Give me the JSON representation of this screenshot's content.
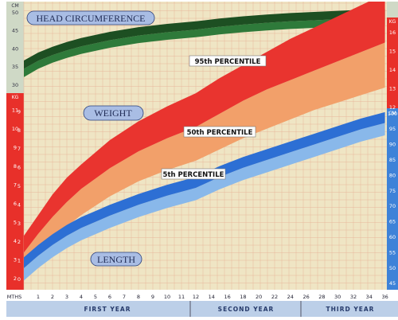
{
  "chart_data": {
    "type": "area",
    "x_axis": {
      "label": "MTHS",
      "ticks": [
        "1",
        "2",
        "3",
        "4",
        "5",
        "6",
        "7",
        "8",
        "9",
        "10",
        "11",
        "12",
        "14",
        "16",
        "18",
        "20",
        "22",
        "24",
        "26",
        "28",
        "30",
        "32",
        "34",
        "36"
      ],
      "periods": [
        "FIRST YEAR",
        "SECOND YEAR",
        "THIRD YEAR"
      ]
    },
    "head_axis": {
      "unit": "CM",
      "ticks": [
        "50",
        "45",
        "40",
        "35",
        "30"
      ],
      "range": [
        28,
        52
      ]
    },
    "weight_axis": {
      "unit": "KG",
      "ticks": [
        "11",
        "10",
        "9",
        "8",
        "7",
        "6",
        "5",
        "4",
        "3",
        "2"
      ],
      "range": [
        1.5,
        12.1
      ]
    },
    "weight_axis_right": {
      "unit": "KG",
      "ticks": [
        "16",
        "15",
        "14",
        "13",
        "12"
      ],
      "range": [
        11.5,
        17.5
      ]
    },
    "length_axis_left": {
      "ticks": [
        "9",
        "8",
        "7",
        "6",
        "5",
        "4",
        "3",
        "2",
        "1",
        "0"
      ]
    },
    "length_axis_right": {
      "unit": "CM",
      "ticks": [
        "100",
        "95",
        "90",
        "85",
        "80",
        "75",
        "70",
        "65",
        "60",
        "55",
        "50",
        "45"
      ],
      "range": [
        43,
        102
      ]
    },
    "labels": {
      "head": "HEAD CIRCUMFERENCE",
      "weight": "WEIGHT",
      "length": "LENGTH",
      "p95": "95th PERCENTILE",
      "p50": "50th PERCENTILE",
      "p5": "5th PERCENTILE"
    },
    "series": [
      {
        "name": "HEAD CIRCUMFERENCE",
        "months": [
          0,
          1,
          2,
          3,
          4,
          6,
          8,
          10,
          12,
          15,
          18,
          21,
          24,
          27,
          30,
          33,
          36
        ],
        "p5": [
          32.2,
          34.5,
          36.2,
          37.5,
          38.6,
          40.3,
          41.6,
          42.5,
          43.2,
          44,
          44.6,
          45.1,
          45.5,
          45.8,
          46.1,
          46.4,
          46.6
        ],
        "p50": [
          34.5,
          36.7,
          38.3,
          39.6,
          40.7,
          42.4,
          43.7,
          44.6,
          45.3,
          46.1,
          46.7,
          47.2,
          47.6,
          47.9,
          48.2,
          48.5,
          48.8
        ],
        "p95": [
          36.8,
          39,
          40.6,
          41.9,
          43,
          44.7,
          46,
          46.9,
          47.6,
          48.4,
          49,
          49.5,
          49.9,
          50.2,
          50.5,
          50.8,
          51
        ]
      },
      {
        "name": "WEIGHT",
        "months": [
          0,
          1,
          2,
          3,
          4,
          6,
          8,
          10,
          12,
          15,
          18,
          21,
          24,
          27,
          30,
          33,
          36
        ],
        "p5": [
          2.5,
          3.3,
          4.1,
          4.8,
          5.4,
          6.4,
          7.2,
          7.8,
          8.3,
          8.9,
          9.5,
          10,
          10.5,
          11,
          11.4,
          11.8,
          12.2
        ],
        "p50": [
          3.4,
          4.4,
          5.3,
          6.1,
          6.8,
          7.9,
          8.8,
          9.5,
          10.1,
          10.8,
          11.5,
          12.1,
          12.6,
          13.1,
          13.6,
          14.1,
          14.6
        ],
        "p95": [
          4.3,
          5.4,
          6.5,
          7.4,
          8.1,
          9.4,
          10.4,
          11.2,
          11.9,
          12.7,
          13.4,
          14.1,
          14.8,
          15.4,
          16,
          16.6,
          17.2
        ]
      },
      {
        "name": "LENGTH",
        "months": [
          0,
          1,
          2,
          3,
          4,
          6,
          8,
          10,
          12,
          15,
          18,
          21,
          24,
          27,
          30,
          33,
          36
        ],
        "p5": [
          46,
          50,
          53.5,
          56.5,
          59,
          63,
          66.5,
          69.5,
          72,
          75.5,
          78.5,
          81,
          83.5,
          86,
          88.5,
          91,
          93
        ],
        "p50": [
          50,
          54,
          57.5,
          60.5,
          63,
          67,
          70.5,
          73.5,
          76,
          79.5,
          82.5,
          85,
          87.5,
          90,
          92.5,
          95,
          97
        ],
        "p95": [
          53.5,
          57.5,
          61,
          64,
          66.5,
          70.5,
          74,
          77,
          79.5,
          83,
          86,
          88.5,
          91,
          93.5,
          96,
          98.5,
          100.5
        ]
      }
    ]
  }
}
